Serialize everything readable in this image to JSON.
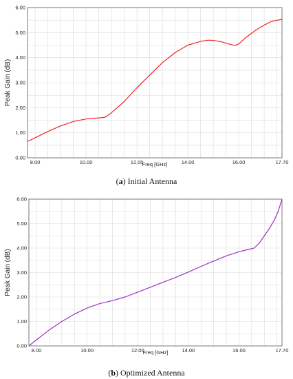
{
  "chart_data": [
    {
      "type": "line",
      "caption_letter": "a",
      "caption_text": " Initial Antenna",
      "xlabel": "Freq [GHz]",
      "ylabel": "Peak Gain (dB)",
      "xlim": [
        7.7,
        17.7
      ],
      "ylim": [
        0,
        6
      ],
      "xticks": [
        "8.00",
        "10.00",
        "12.00",
        "14.00",
        "16.00",
        "17.70"
      ],
      "xtick_values": [
        8,
        10,
        12,
        14,
        16,
        17.7
      ],
      "yticks": [
        "0.00",
        "1.00",
        "2.00",
        "3.00",
        "4.00",
        "5.00",
        "6.00"
      ],
      "ytick_values": [
        0,
        1,
        2,
        3,
        4,
        5,
        6
      ],
      "color": "#ee2222",
      "series": [
        {
          "x": [
            7.7,
            8.0,
            8.5,
            9.0,
            9.5,
            10.0,
            10.3,
            10.6,
            10.75,
            11.0,
            11.5,
            12.0,
            12.5,
            13.0,
            13.5,
            14.0,
            14.5,
            14.8,
            15.0,
            15.3,
            15.6,
            15.85,
            16.0,
            16.3,
            16.7,
            17.0,
            17.3,
            17.7
          ],
          "y": [
            0.65,
            0.8,
            1.05,
            1.27,
            1.45,
            1.55,
            1.58,
            1.6,
            1.62,
            1.8,
            2.25,
            2.8,
            3.3,
            3.8,
            4.2,
            4.5,
            4.65,
            4.7,
            4.69,
            4.64,
            4.55,
            4.48,
            4.55,
            4.82,
            5.12,
            5.3,
            5.45,
            5.53
          ]
        }
      ]
    },
    {
      "type": "line",
      "caption_letter": "b",
      "caption_text": " Optimized Antenna",
      "xlabel": "Freq [GHz]",
      "ylabel": "Peak Gain (dB)",
      "xlim": [
        7.7,
        17.7
      ],
      "ylim": [
        0,
        6
      ],
      "xticks": [
        "8.00",
        "10.00",
        "12.00",
        "14.00",
        "16.00",
        "17.70"
      ],
      "xtick_values": [
        8,
        10,
        12,
        14,
        16,
        17.7
      ],
      "yticks": [
        "0.00",
        "1.00",
        "2.00",
        "3.00",
        "4.00",
        "5.00",
        "6.00"
      ],
      "ytick_values": [
        0,
        1,
        2,
        3,
        4,
        5,
        6
      ],
      "color": "#9b30c0",
      "series": [
        {
          "x": [
            7.7,
            8.0,
            8.5,
            9.0,
            9.5,
            10.0,
            10.5,
            11.0,
            11.5,
            12.0,
            12.5,
            13.0,
            13.5,
            14.0,
            14.5,
            15.0,
            15.5,
            16.0,
            16.4,
            16.6,
            16.8,
            17.0,
            17.2,
            17.4,
            17.55,
            17.7
          ],
          "y": [
            0.0,
            0.25,
            0.65,
            1.0,
            1.3,
            1.55,
            1.73,
            1.85,
            2.0,
            2.2,
            2.4,
            2.6,
            2.8,
            3.02,
            3.25,
            3.47,
            3.68,
            3.85,
            3.95,
            4.0,
            4.2,
            4.5,
            4.8,
            5.15,
            5.5,
            6.0
          ]
        }
      ]
    }
  ]
}
